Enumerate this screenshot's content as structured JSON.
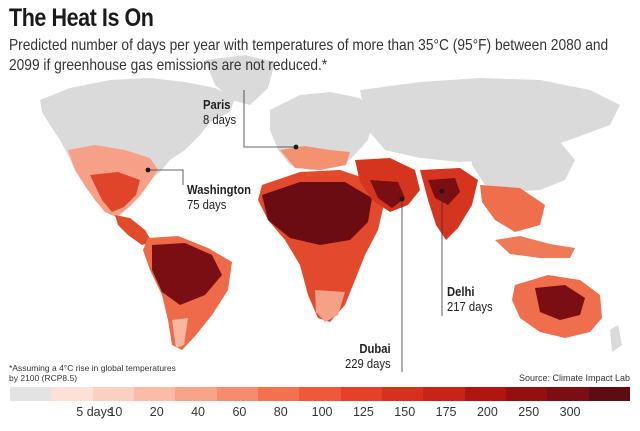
{
  "header": {
    "title": "The Heat Is On",
    "subtitle": "Predicted number of days per year with temperatures of more than 35°C (95°F) between 2080 and 2099 if greenhouse gas emissions are not reduced.*"
  },
  "callouts": [
    {
      "key": "paris",
      "city": "Paris",
      "days": "8 days"
    },
    {
      "key": "washington",
      "city": "Washington",
      "days": "75 days"
    },
    {
      "key": "delhi",
      "city": "Delhi",
      "days": "217 days"
    },
    {
      "key": "dubai",
      "city": "Dubai",
      "days": "229 days"
    }
  ],
  "footnote": "*Assuming a 4°C rise in global temperatures by 2100 (RCP8.5)",
  "source": "Source: Climate Impact Lab",
  "legend": {
    "colors": [
      "#e3e3e3",
      "#fde0d6",
      "#fcd0c0",
      "#fbbba5",
      "#f9a488",
      "#f78b6b",
      "#f4714f",
      "#ef5838",
      "#e64128",
      "#d9301d",
      "#c92216",
      "#b01510",
      "#94100f",
      "#7a0e12",
      "#5e0b12"
    ],
    "ticks": [
      "5 days",
      "10",
      "20",
      "40",
      "60",
      "80",
      "100",
      "125",
      "150",
      "175",
      "200",
      "250",
      "300"
    ]
  },
  "map": {
    "land_base": "#dadada",
    "heat_light": "#f8b8a0",
    "heat_mid": "#ee5535",
    "heat_dark": "#c22015",
    "heat_darkest": "#6a0c12",
    "marker": "#1a1a1a"
  }
}
